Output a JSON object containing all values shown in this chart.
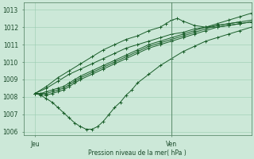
{
  "xlabel": "Pression niveau de la mer( hPa )",
  "bg_color": "#cce8d8",
  "grid_color": "#99ccb0",
  "line_color": "#1a5e2a",
  "vline_color": "#5a8a6a",
  "ylim": [
    1005.8,
    1013.4
  ],
  "yticks": [
    1006,
    1007,
    1008,
    1009,
    1010,
    1011,
    1012,
    1013
  ],
  "xlim": [
    0,
    40
  ],
  "xticks": [
    2,
    26
  ],
  "xtick_labels": [
    "Jeu",
    "Ven"
  ],
  "vline_x": 26,
  "series": [
    {
      "pts_x": [
        2,
        3,
        4,
        5,
        6,
        7,
        8,
        9,
        10,
        12,
        14,
        16,
        18,
        20,
        22,
        24,
        26,
        28,
        30,
        32,
        34,
        36,
        38,
        40
      ],
      "pts_y": [
        1008.2,
        1008.2,
        1008.3,
        1008.4,
        1008.5,
        1008.6,
        1008.8,
        1009.0,
        1009.2,
        1009.5,
        1009.8,
        1010.1,
        1010.4,
        1010.7,
        1011.0,
        1011.2,
        1011.4,
        1011.6,
        1011.8,
        1012.0,
        1012.2,
        1012.4,
        1012.6,
        1012.8
      ]
    },
    {
      "pts_x": [
        2,
        3,
        4,
        5,
        6,
        7,
        8,
        9,
        10,
        12,
        14,
        16,
        18,
        20,
        22,
        24,
        26,
        28,
        30,
        32,
        34,
        36,
        38,
        40
      ],
      "pts_y": [
        1008.2,
        1008.2,
        1008.2,
        1008.3,
        1008.4,
        1008.5,
        1008.7,
        1008.9,
        1009.1,
        1009.4,
        1009.7,
        1010.0,
        1010.3,
        1010.6,
        1010.9,
        1011.1,
        1011.3,
        1011.5,
        1011.7,
        1011.9,
        1012.1,
        1012.2,
        1012.3,
        1012.4
      ]
    },
    {
      "pts_x": [
        2,
        3,
        4,
        5,
        6,
        7,
        8,
        9,
        10,
        12,
        14,
        16,
        18,
        20,
        22,
        24,
        26,
        28,
        30,
        32,
        34,
        36,
        38,
        40
      ],
      "pts_y": [
        1008.2,
        1008.15,
        1008.1,
        1008.2,
        1008.3,
        1008.4,
        1008.6,
        1008.8,
        1009.0,
        1009.3,
        1009.6,
        1009.9,
        1010.2,
        1010.5,
        1010.8,
        1011.0,
        1011.2,
        1011.4,
        1011.6,
        1011.8,
        1012.0,
        1012.1,
        1012.2,
        1012.3
      ]
    },
    {
      "pts_x": [
        2,
        3,
        4,
        5,
        6,
        7,
        8,
        9,
        10,
        11,
        12,
        13,
        14,
        15,
        16,
        17,
        18,
        19,
        20,
        22,
        24,
        26,
        28,
        30,
        32,
        34,
        36,
        38,
        40
      ],
      "pts_y": [
        1008.2,
        1008.1,
        1007.9,
        1007.7,
        1007.4,
        1007.1,
        1006.8,
        1006.5,
        1006.3,
        1006.15,
        1006.15,
        1006.3,
        1006.6,
        1007.0,
        1007.4,
        1007.7,
        1008.1,
        1008.4,
        1008.8,
        1009.3,
        1009.8,
        1010.2,
        1010.6,
        1010.9,
        1011.2,
        1011.4,
        1011.6,
        1011.8,
        1012.0
      ]
    },
    {
      "pts_x": [
        2,
        4,
        6,
        8,
        10,
        12,
        14,
        16,
        18,
        20,
        22,
        24,
        26,
        28,
        30,
        32,
        34,
        36,
        38
      ],
      "pts_y": [
        1008.2,
        1008.5,
        1008.9,
        1009.3,
        1009.6,
        1009.9,
        1010.2,
        1010.5,
        1010.8,
        1011.0,
        1011.2,
        1011.4,
        1011.6,
        1011.7,
        1011.9,
        1012.0,
        1012.1,
        1012.2,
        1012.3
      ]
    },
    {
      "pts_x": [
        2,
        4,
        6,
        8,
        10,
        12,
        14,
        16,
        18,
        20,
        22,
        24,
        25,
        26,
        27,
        28,
        30,
        32,
        34,
        36,
        38,
        40
      ],
      "pts_y": [
        1008.2,
        1008.6,
        1009.1,
        1009.5,
        1009.9,
        1010.3,
        1010.7,
        1011.0,
        1011.3,
        1011.5,
        1011.8,
        1012.0,
        1012.2,
        1012.4,
        1012.5,
        1012.35,
        1012.1,
        1012.0,
        1012.0,
        1012.1,
        1012.2,
        1012.3
      ]
    }
  ]
}
